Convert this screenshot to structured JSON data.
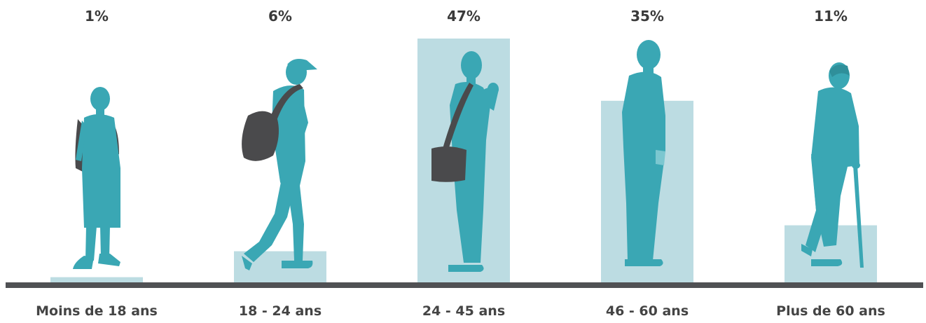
{
  "chart_data": {
    "type": "bar",
    "categories": [
      "Moins de 18 ans",
      "18 - 24 ans",
      "24 - 45 ans",
      "46 - 60 ans",
      "Plus de 60 ans"
    ],
    "values": [
      1,
      6,
      47,
      35,
      11
    ],
    "value_labels": [
      "1%",
      "6%",
      "47%",
      "35%",
      "11%"
    ],
    "unit": "%",
    "ylim": [
      0,
      47
    ],
    "grid": false,
    "legend": "none",
    "title": "",
    "xlabel": "",
    "ylabel": ""
  },
  "colors": {
    "bar": "#bcdce2",
    "figure": "#3aa7b4",
    "bag": "#4a4a4c",
    "baseline": "#505154",
    "label": "#3a3a3a"
  },
  "figures": [
    "child-backpack-icon",
    "young-man-cap-backpack-icon",
    "man-shoulder-bag-icon",
    "middle-aged-man-icon",
    "elderly-man-cane-icon"
  ]
}
